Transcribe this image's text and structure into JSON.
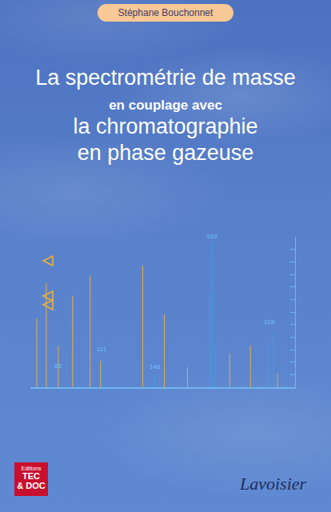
{
  "author": "Stéphane Bouchonnet",
  "title": {
    "line1": "La spectrométrie de masse",
    "line2": "en couplage avec",
    "line3": "la chromatographie",
    "line4": "en phase gazeuse"
  },
  "chart_data": {
    "type": "bar",
    "xlim": [
      40,
      372
    ],
    "ylim": [
      0,
      120
    ],
    "yticks": [
      0,
      10,
      20,
      30,
      40,
      50,
      60,
      70,
      80,
      90,
      100,
      110,
      120
    ],
    "tick_labels": false,
    "grid": false,
    "series": [
      {
        "color": "#f2b233",
        "x": [
          48,
          60,
          75,
          93,
          115,
          128,
          181,
          208,
          237,
          290,
          316,
          350
        ],
        "values": [
          55,
          83,
          33,
          73,
          89,
          21,
          97,
          58,
          16,
          27,
          33,
          11
        ]
      },
      {
        "color": "#3f9fe6",
        "x": [
          130,
          196,
          265,
          268,
          272,
          338,
          345,
          360
        ],
        "values": [
          24,
          10,
          75,
          116,
          33,
          35,
          44,
          19
        ]
      }
    ],
    "annotations": [
      {
        "x": 75,
        "y": 13,
        "text": "85"
      },
      {
        "x": 130,
        "y": 26,
        "text": "111"
      },
      {
        "x": 196,
        "y": 12,
        "text": "146"
      },
      {
        "x": 268,
        "y": 116,
        "text": "163"
      },
      {
        "x": 340,
        "y": 48,
        "text": "218"
      }
    ]
  },
  "publisher": {
    "imprint": [
      "Editions",
      "TEC",
      "& DOC"
    ],
    "name": "Lavoisier"
  }
}
